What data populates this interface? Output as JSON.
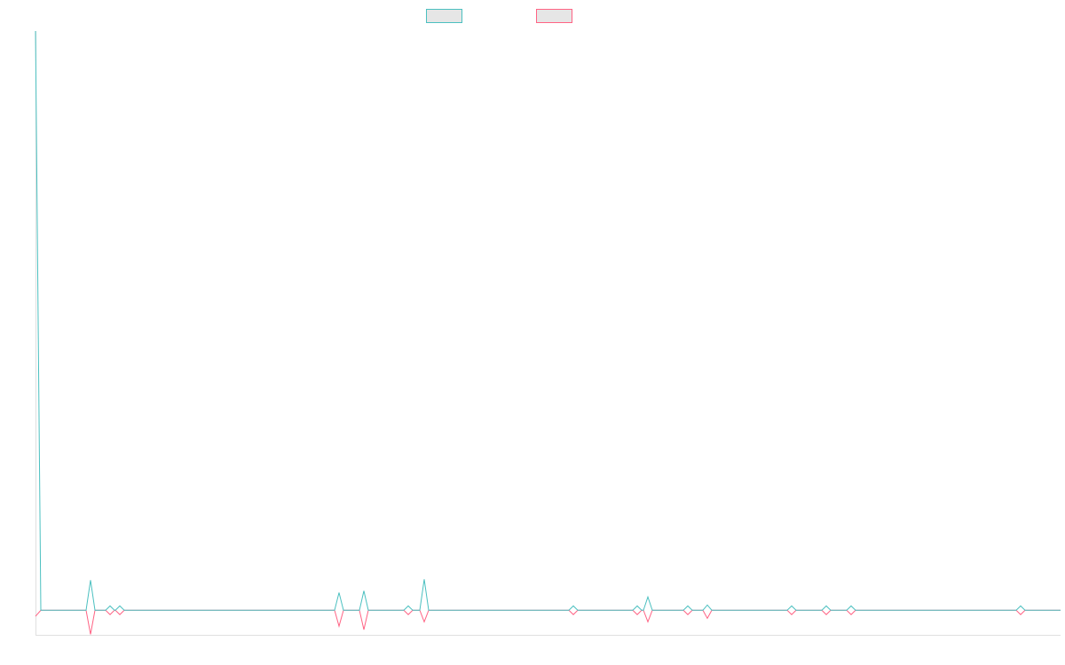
{
  "chart_data": {
    "type": "line",
    "x": [
      0,
      6,
      57,
      62,
      67,
      79,
      84,
      89,
      90,
      95,
      100,
      337,
      342,
      347,
      365,
      370,
      375,
      415,
      420,
      425,
      433,
      438,
      443,
      601,
      606,
      611,
      673,
      678,
      683,
      685,
      690,
      695,
      730,
      735,
      740,
      752,
      757,
      762,
      847,
      852,
      857,
      886,
      891,
      896,
      914,
      919,
      924,
      1105,
      1110,
      1115,
      1155
    ],
    "series": [
      {
        "color": "#4bc0c0",
        "values": [
          20,
          0,
          0,
          1.04,
          0,
          0,
          0.15,
          0,
          0,
          0.15,
          0,
          0,
          0.61,
          0,
          0,
          0.67,
          0,
          0,
          0.15,
          0,
          0,
          1.07,
          0,
          0,
          0.15,
          0,
          0,
          0.15,
          0,
          0,
          0.46,
          0,
          0,
          0.15,
          0,
          0,
          0.18,
          0,
          0,
          0.15,
          0,
          0,
          0.15,
          0,
          0,
          0.15,
          0,
          0,
          0.15,
          0,
          0
        ]
      },
      {
        "color": "#ff6384",
        "values": [
          -0.21,
          0,
          0,
          -0.83,
          0,
          0,
          -0.15,
          0,
          0,
          -0.15,
          0,
          0,
          -0.55,
          0,
          0,
          -0.67,
          0,
          0,
          -0.15,
          0,
          0,
          -0.4,
          0,
          0,
          -0.15,
          0,
          0,
          -0.15,
          0,
          0,
          -0.4,
          0,
          0,
          -0.15,
          0,
          0,
          -0.28,
          0,
          0,
          -0.15,
          0,
          0,
          -0.15,
          0,
          0,
          -0.15,
          0,
          0,
          -0.15,
          0,
          0
        ]
      }
    ],
    "xlim": [
      0,
      1155
    ],
    "ylim": [
      -0.85,
      20
    ]
  }
}
